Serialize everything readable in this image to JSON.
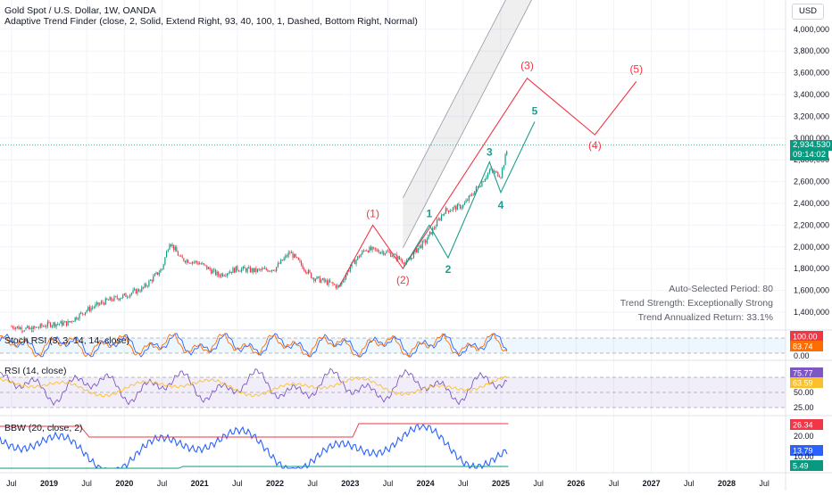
{
  "header": {
    "title": "Gold Spot / U.S. Dollar, 1W, OANDA",
    "indicator": "Adaptive Trend Finder (close, 2, Solid, Extend Right, 93, 40, 100, 1, Dashed, Bottom Right, Normal)"
  },
  "currency": "USD",
  "price_badge": {
    "value": "2,934.530",
    "countdown": "09:14:02",
    "color": "#089981"
  },
  "stats": {
    "period": "Auto-Selected Period: 80",
    "strength": "Trend Strength: Exceptionally Strong",
    "return": "Trend Annualized Return: 33.1%"
  },
  "panes": {
    "stoch": {
      "title": "Stoch RSI (3, 3, 14, 14, close)",
      "badges": [
        "100.00",
        "83.74"
      ],
      "badge_colors": [
        "#f23645",
        "#ff6d00"
      ],
      "ticks": [
        "0.00"
      ]
    },
    "rsi": {
      "title": "RSI (14, close)",
      "badges": [
        "75.77",
        "63.59"
      ],
      "badge_colors": [
        "#7e57c2",
        "#fbc02d"
      ],
      "ticks": [
        "50.00",
        "25.00"
      ]
    },
    "bbw": {
      "title": "BBW (20, close, 2)",
      "badges": [
        "26.34",
        "13.79",
        "5.49"
      ],
      "badge_colors": [
        "#f23645",
        "#2962ff",
        "#089981"
      ],
      "ticks": [
        "20.00",
        "10.00"
      ]
    }
  },
  "chart_data": {
    "type": "line",
    "title": "Gold Spot / U.S. Dollar, 1W, OANDA",
    "x_ticks": [
      "Jul",
      "2019",
      "Jul",
      "2020",
      "Jul",
      "2021",
      "Jul",
      "2022",
      "Jul",
      "2023",
      "Jul",
      "2024",
      "Jul",
      "2025",
      "Jul",
      "2026",
      "Jul",
      "2027",
      "Jul",
      "2028",
      "Jul"
    ],
    "y_ticks": [
      "4,000,000",
      "3,800,000",
      "3,600,000",
      "3,400,000",
      "3,200,000",
      "3,000,000",
      "2,800,000",
      "2,600,000",
      "2,400,000",
      "2,200,000",
      "2,000,000",
      "1,800,000",
      "1,600,000",
      "1,400,000"
    ],
    "ylim": [
      1300,
      4000
    ],
    "series": [
      {
        "x": [
          2018.5,
          2018.75,
          2019.0,
          2019.25,
          2019.5,
          2019.75,
          2020.0,
          2020.25,
          2020.5,
          2020.6,
          2020.75,
          2021.0,
          2021.25,
          2021.5,
          2021.75,
          2022.0,
          2022.2,
          2022.5,
          2022.75,
          2022.85,
          2023.0,
          2023.2,
          2023.5,
          2023.75,
          2023.9,
          2024.0,
          2024.25,
          2024.5,
          2024.75,
          2024.85,
          2025.0,
          2025.1
        ],
        "y": [
          1270,
          1240,
          1290,
          1300,
          1420,
          1500,
          1550,
          1620,
          1800,
          2050,
          1890,
          1850,
          1740,
          1800,
          1780,
          1800,
          1950,
          1720,
          1660,
          1630,
          1820,
          1980,
          1950,
          1850,
          1990,
          2050,
          2330,
          2380,
          2600,
          2700,
          2660,
          2935
        ]
      }
    ],
    "elliott_waves": {
      "labels": [
        "(1)",
        "(2)",
        "(3)",
        "(4)",
        "(5)",
        "1",
        "2",
        "3",
        "4",
        "5"
      ]
    },
    "stoch_rsi": {
      "k_last": 100.0,
      "d_last": 83.74,
      "bands": [
        20,
        80
      ]
    },
    "rsi": {
      "last": 75.77,
      "ma_last": 63.59,
      "bands": [
        30,
        50,
        70
      ]
    },
    "bbw": {
      "last": 13.79,
      "highest": 26.34,
      "lowest": 5.49
    }
  }
}
